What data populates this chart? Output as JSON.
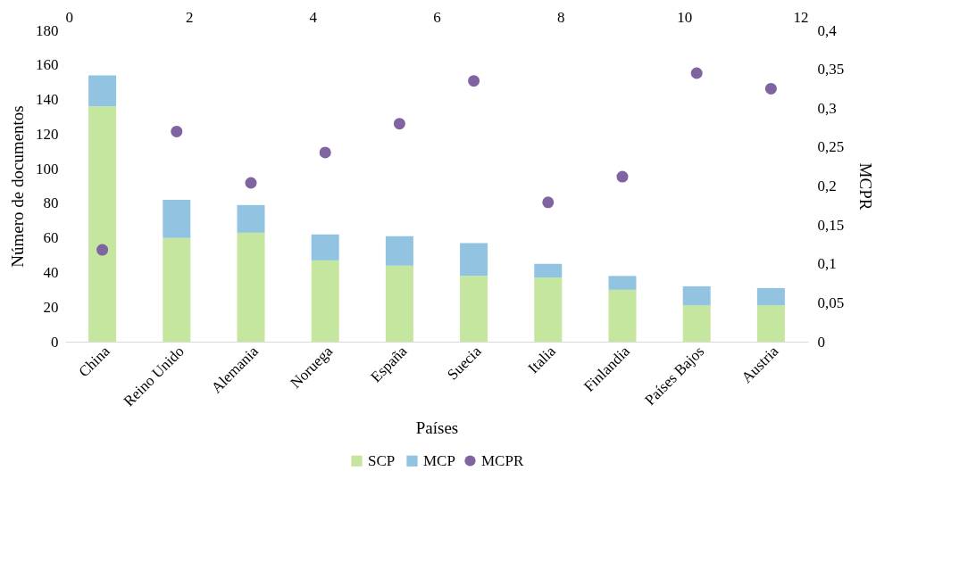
{
  "chart_data": {
    "type": "bar",
    "stacked": true,
    "xlabel": "Países",
    "ylabel": "Número de documentos",
    "y2label": "MCPR",
    "categories": [
      "China",
      "Reino Unido",
      "Alemania",
      "Noruega",
      "España",
      "Suecia",
      "Italia",
      "Finlandia",
      "Países Bajos",
      "Austria"
    ],
    "series": [
      {
        "name": "SCP",
        "color": "#c5e69e",
        "values": [
          136,
          60,
          63,
          47,
          44,
          38,
          37,
          30,
          21,
          21
        ]
      },
      {
        "name": "MCP",
        "color": "#92c3e0",
        "values": [
          18,
          22,
          16,
          15,
          17,
          19,
          8,
          8,
          11,
          10
        ]
      },
      {
        "name": "MCPR",
        "type": "scatter",
        "axis": "y2",
        "color": "#8064a2",
        "values": [
          0.118,
          0.27,
          0.204,
          0.243,
          0.28,
          0.335,
          0.179,
          0.212,
          0.345,
          0.325
        ]
      }
    ],
    "ylim": [
      0,
      180
    ],
    "yticks": [
      0,
      20,
      40,
      60,
      80,
      100,
      120,
      140,
      160,
      180
    ],
    "y2lim": [
      0,
      0.4
    ],
    "y2ticks": [
      0,
      {
        "value": 0.05,
        "label": "0,05"
      },
      {
        "value": 0.1,
        "label": "0,1"
      },
      {
        "value": 0.15,
        "label": "0,15"
      },
      {
        "value": 0.2,
        "label": "0,2"
      },
      {
        "value": 0.25,
        "label": "0,25"
      },
      {
        "value": 0.3,
        "label": "0,3"
      },
      {
        "value": 0.35,
        "label": "0,35"
      },
      {
        "value": 0.4,
        "label": "0,4"
      }
    ],
    "x2lim": [
      0,
      12
    ],
    "x2ticks": [
      0,
      2,
      4,
      6,
      8,
      10,
      12
    ],
    "marker": "circle",
    "legend": "bottom"
  }
}
